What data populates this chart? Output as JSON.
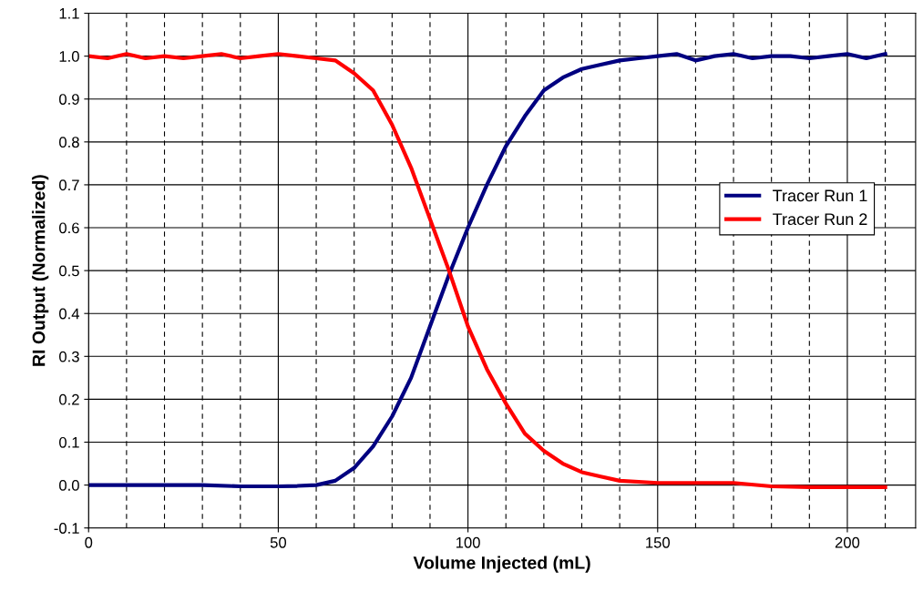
{
  "chart_data": {
    "type": "line",
    "xlabel": "Volume Injected (mL)",
    "ylabel": "RI Output (Normalized)",
    "xlim": [
      0,
      218
    ],
    "xticks": [
      0,
      50,
      100,
      150,
      200
    ],
    "ylim": [
      -0.1,
      1.1
    ],
    "yticks": [
      {
        "value": -0.1,
        "label": "-0.1"
      },
      {
        "value": 0,
        "label": "0.0"
      },
      {
        "value": 0.1,
        "label": "0.1"
      },
      {
        "value": 0.2,
        "label": "0.2"
      },
      {
        "value": 0.3,
        "label": "0.3"
      },
      {
        "value": 0.4,
        "label": "0.4"
      },
      {
        "value": 0.5,
        "label": "0.5"
      },
      {
        "value": 0.6,
        "label": "0.6"
      },
      {
        "value": 0.7,
        "label": "0.7"
      },
      {
        "value": 0.8,
        "label": "0.8"
      },
      {
        "value": 0.9,
        "label": "0.9"
      },
      {
        "value": 1.0,
        "label": "1.0"
      },
      {
        "value": 1.1,
        "label": "1.1"
      }
    ],
    "grid": true,
    "legend": "right",
    "marker": "none",
    "line_style": "solid",
    "series": [
      {
        "name": "Tracer Run 1",
        "color": "#000080",
        "x": [
          0,
          10,
          20,
          30,
          40,
          50,
          55,
          60,
          65,
          70,
          75,
          80,
          85,
          90,
          95,
          100,
          105,
          110,
          115,
          120,
          125,
          130,
          135,
          140,
          145,
          150,
          155,
          160,
          165,
          170,
          175,
          180,
          185,
          190,
          195,
          200,
          205,
          210
        ],
        "values": [
          0,
          0,
          0,
          0,
          -0.003,
          -0.003,
          -0.002,
          0,
          0.01,
          0.04,
          0.09,
          0.16,
          0.25,
          0.37,
          0.49,
          0.6,
          0.7,
          0.79,
          0.86,
          0.92,
          0.95,
          0.97,
          0.98,
          0.99,
          0.995,
          1.0,
          1.005,
          0.99,
          1.0,
          1.005,
          0.995,
          1.0,
          1.0,
          0.995,
          1.0,
          1.005,
          0.995,
          1.005
        ]
      },
      {
        "name": "Tracer Run 2",
        "color": "#ff0000",
        "x": [
          0,
          5,
          10,
          15,
          20,
          25,
          30,
          35,
          40,
          45,
          50,
          55,
          60,
          65,
          70,
          75,
          80,
          85,
          90,
          95,
          100,
          105,
          110,
          115,
          120,
          125,
          130,
          135,
          140,
          150,
          160,
          170,
          180,
          190,
          200,
          210
        ],
        "values": [
          1.0,
          0.995,
          1.005,
          0.995,
          1.0,
          0.995,
          1.0,
          1.005,
          0.995,
          1.0,
          1.005,
          1.0,
          0.995,
          0.99,
          0.96,
          0.92,
          0.84,
          0.74,
          0.62,
          0.5,
          0.37,
          0.27,
          0.19,
          0.12,
          0.08,
          0.05,
          0.03,
          0.02,
          0.01,
          0.005,
          0.005,
          0.005,
          -0.003,
          -0.005,
          -0.005,
          -0.005
        ]
      }
    ]
  }
}
